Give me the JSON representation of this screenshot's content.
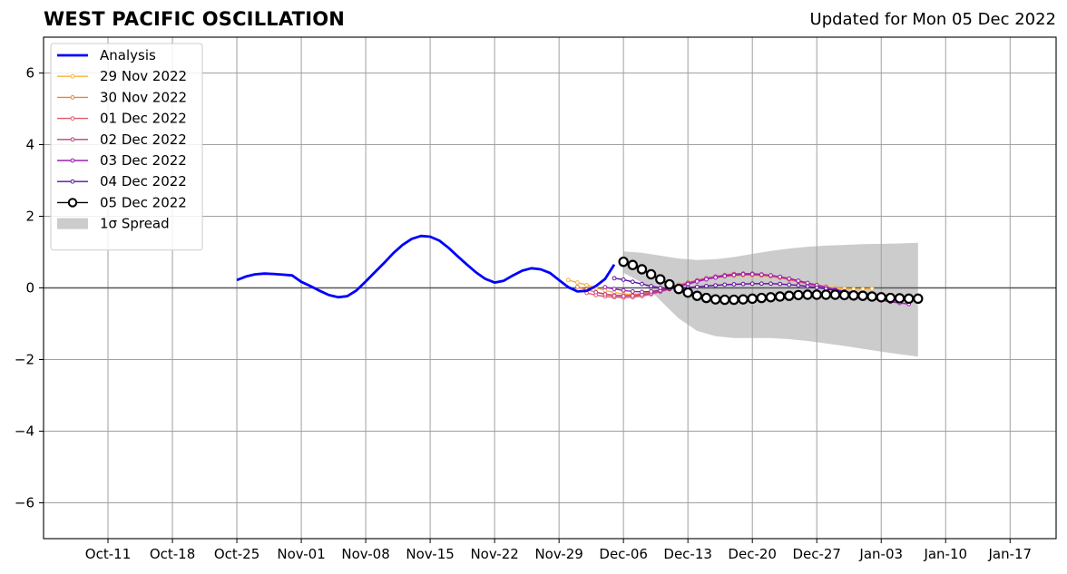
{
  "title": "WEST PACIFIC OSCILLATION",
  "subtitle": "Updated for Mon 05 Dec 2022",
  "chart_data": {
    "type": "line",
    "title": "WEST PACIFIC OSCILLATION",
    "subtitle": "Updated for Mon 05 Dec 2022",
    "xlabel": "",
    "ylabel": "",
    "x_axis": {
      "start": "2022-10-04",
      "end": "2023-01-22"
    },
    "xticks": [
      {
        "date": "2022-10-11",
        "label": "Oct-11"
      },
      {
        "date": "2022-10-18",
        "label": "Oct-18"
      },
      {
        "date": "2022-10-25",
        "label": "Oct-25"
      },
      {
        "date": "2022-11-01",
        "label": "Nov-01"
      },
      {
        "date": "2022-11-08",
        "label": "Nov-08"
      },
      {
        "date": "2022-11-15",
        "label": "Nov-15"
      },
      {
        "date": "2022-11-22",
        "label": "Nov-22"
      },
      {
        "date": "2022-11-29",
        "label": "Nov-29"
      },
      {
        "date": "2022-12-06",
        "label": "Dec-06"
      },
      {
        "date": "2022-12-13",
        "label": "Dec-13"
      },
      {
        "date": "2022-12-20",
        "label": "Dec-20"
      },
      {
        "date": "2022-12-27",
        "label": "Dec-27"
      },
      {
        "date": "2023-01-03",
        "label": "Jan-03"
      },
      {
        "date": "2023-01-10",
        "label": "Jan-10"
      },
      {
        "date": "2023-01-17",
        "label": "Jan-17"
      }
    ],
    "ylim": [
      -7,
      7
    ],
    "yticks": [
      -6,
      -4,
      -2,
      0,
      2,
      4,
      6
    ],
    "ytick_labels": [
      "−6",
      "−4",
      "−2",
      "0",
      "2",
      "4",
      "6"
    ],
    "grid": true,
    "zero_line": true,
    "legend_position": "top-left",
    "series": [
      {
        "name": "Analysis",
        "color": "#0000ff",
        "marker": "none",
        "width": 2.8,
        "x": [
          "2022-10-25",
          "2022-10-26",
          "2022-10-27",
          "2022-10-28",
          "2022-10-29",
          "2022-10-30",
          "2022-10-31",
          "2022-11-01",
          "2022-11-02",
          "2022-11-03",
          "2022-11-04",
          "2022-11-05",
          "2022-11-06",
          "2022-11-07",
          "2022-11-08",
          "2022-11-09",
          "2022-11-10",
          "2022-11-11",
          "2022-11-12",
          "2022-11-13",
          "2022-11-14",
          "2022-11-15",
          "2022-11-16",
          "2022-11-17",
          "2022-11-18",
          "2022-11-19",
          "2022-11-20",
          "2022-11-21",
          "2022-11-22",
          "2022-11-23",
          "2022-11-24",
          "2022-11-25",
          "2022-11-26",
          "2022-11-27",
          "2022-11-28",
          "2022-11-29",
          "2022-11-30",
          "2022-12-01",
          "2022-12-02",
          "2022-12-03",
          "2022-12-04",
          "2022-12-05"
        ],
        "y": [
          0.22,
          0.32,
          0.38,
          0.4,
          0.39,
          0.37,
          0.35,
          0.17,
          0.05,
          -0.08,
          -0.2,
          -0.26,
          -0.23,
          -0.07,
          0.18,
          0.44,
          0.7,
          0.97,
          1.2,
          1.37,
          1.45,
          1.43,
          1.32,
          1.12,
          0.88,
          0.65,
          0.43,
          0.25,
          0.15,
          0.2,
          0.35,
          0.48,
          0.55,
          0.52,
          0.42,
          0.22,
          0.02,
          -0.1,
          -0.08,
          0.05,
          0.25,
          0.65
        ]
      },
      {
        "name": "29 Nov 2022",
        "color": "#f9b13a",
        "marker": "dot",
        "x": [
          "2022-11-30",
          "2022-12-01",
          "2022-12-02",
          "2022-12-03",
          "2022-12-04",
          "2022-12-05",
          "2022-12-06",
          "2022-12-07",
          "2022-12-08",
          "2022-12-09",
          "2022-12-10",
          "2022-12-11",
          "2022-12-12",
          "2022-12-13",
          "2022-12-14",
          "2022-12-15",
          "2022-12-16",
          "2022-12-17",
          "2022-12-18",
          "2022-12-19",
          "2022-12-20",
          "2022-12-21",
          "2022-12-22",
          "2022-12-23",
          "2022-12-24",
          "2022-12-25",
          "2022-12-26",
          "2022-12-27",
          "2022-12-28",
          "2022-12-29",
          "2022-12-30",
          "2022-12-31",
          "2023-01-01",
          "2023-01-02"
        ],
        "y": [
          0.22,
          0.15,
          0.08,
          0.0,
          -0.07,
          -0.13,
          -0.17,
          -0.18,
          -0.16,
          -0.11,
          -0.05,
          0.02,
          0.08,
          0.14,
          0.2,
          0.25,
          0.29,
          0.32,
          0.34,
          0.35,
          0.35,
          0.34,
          0.32,
          0.28,
          0.24,
          0.19,
          0.14,
          0.09,
          0.04,
          0.0,
          -0.02,
          -0.03,
          -0.03,
          -0.02
        ]
      },
      {
        "name": "30 Nov 2022",
        "color": "#ee8140",
        "marker": "dot",
        "x": [
          "2022-12-01",
          "2022-12-02",
          "2022-12-03",
          "2022-12-04",
          "2022-12-05",
          "2022-12-06",
          "2022-12-07",
          "2022-12-08",
          "2022-12-09",
          "2022-12-10",
          "2022-12-11",
          "2022-12-12",
          "2022-12-13",
          "2022-12-14",
          "2022-12-15",
          "2022-12-16",
          "2022-12-17",
          "2022-12-18",
          "2022-12-19",
          "2022-12-20",
          "2022-12-21",
          "2022-12-22",
          "2022-12-23",
          "2022-12-24",
          "2022-12-25",
          "2022-12-26",
          "2022-12-27",
          "2022-12-28",
          "2022-12-29",
          "2022-12-30",
          "2022-12-31",
          "2023-01-01",
          "2023-01-02",
          "2023-01-03"
        ],
        "y": [
          0.03,
          -0.05,
          -0.12,
          -0.17,
          -0.2,
          -0.21,
          -0.2,
          -0.16,
          -0.11,
          -0.05,
          0.02,
          0.09,
          0.15,
          0.21,
          0.26,
          0.3,
          0.33,
          0.35,
          0.36,
          0.36,
          0.35,
          0.32,
          0.28,
          0.23,
          0.17,
          0.11,
          0.05,
          0.0,
          -0.05,
          -0.09,
          -0.12,
          -0.15,
          -0.18,
          -0.22
        ]
      },
      {
        "name": "01 Dec 2022",
        "color": "#dd5a6e",
        "marker": "dot",
        "x": [
          "2022-12-02",
          "2022-12-03",
          "2022-12-04",
          "2022-12-05",
          "2022-12-06",
          "2022-12-07",
          "2022-12-08",
          "2022-12-09",
          "2022-12-10",
          "2022-12-11",
          "2022-12-12",
          "2022-12-13",
          "2022-12-14",
          "2022-12-15",
          "2022-12-16",
          "2022-12-17",
          "2022-12-18",
          "2022-12-19",
          "2022-12-20",
          "2022-12-21",
          "2022-12-22",
          "2022-12-23",
          "2022-12-24",
          "2022-12-25",
          "2022-12-26",
          "2022-12-27",
          "2022-12-28",
          "2022-12-29",
          "2022-12-30",
          "2022-12-31",
          "2023-01-01",
          "2023-01-02",
          "2023-01-03",
          "2023-01-04"
        ],
        "y": [
          -0.14,
          -0.2,
          -0.24,
          -0.26,
          -0.27,
          -0.26,
          -0.23,
          -0.18,
          -0.11,
          -0.04,
          0.04,
          0.11,
          0.18,
          0.24,
          0.29,
          0.33,
          0.36,
          0.38,
          0.38,
          0.37,
          0.34,
          0.3,
          0.24,
          0.18,
          0.12,
          0.05,
          -0.01,
          -0.07,
          -0.12,
          -0.17,
          -0.22,
          -0.27,
          -0.31,
          -0.35
        ]
      },
      {
        "name": "02 Dec 2022",
        "color": "#c23b8a",
        "marker": "dot",
        "x": [
          "2022-12-03",
          "2022-12-04",
          "2022-12-05",
          "2022-12-06",
          "2022-12-07",
          "2022-12-08",
          "2022-12-09",
          "2022-12-10",
          "2022-12-11",
          "2022-12-12",
          "2022-12-13",
          "2022-12-14",
          "2022-12-15",
          "2022-12-16",
          "2022-12-17",
          "2022-12-18",
          "2022-12-19",
          "2022-12-20",
          "2022-12-21",
          "2022-12-22",
          "2022-12-23",
          "2022-12-24",
          "2022-12-25",
          "2022-12-26",
          "2022-12-27",
          "2022-12-28",
          "2022-12-29",
          "2022-12-30",
          "2022-12-31",
          "2023-01-01",
          "2023-01-02",
          "2023-01-03",
          "2023-01-04",
          "2023-01-05"
        ],
        "y": [
          -0.12,
          -0.18,
          -0.22,
          -0.23,
          -0.22,
          -0.19,
          -0.15,
          -0.09,
          -0.02,
          0.06,
          0.14,
          0.21,
          0.27,
          0.32,
          0.36,
          0.39,
          0.4,
          0.4,
          0.38,
          0.35,
          0.31,
          0.26,
          0.2,
          0.13,
          0.07,
          0.0,
          -0.06,
          -0.12,
          -0.18,
          -0.24,
          -0.3,
          -0.35,
          -0.39,
          -0.42
        ]
      },
      {
        "name": "03 Dec 2022",
        "color": "#9a1fb0",
        "marker": "dot",
        "x": [
          "2022-12-04",
          "2022-12-05",
          "2022-12-06",
          "2022-12-07",
          "2022-12-08",
          "2022-12-09",
          "2022-12-10",
          "2022-12-11",
          "2022-12-12",
          "2022-12-13",
          "2022-12-14",
          "2022-12-15",
          "2022-12-16",
          "2022-12-17",
          "2022-12-18",
          "2022-12-19",
          "2022-12-20",
          "2022-12-21",
          "2022-12-22",
          "2022-12-23",
          "2022-12-24",
          "2022-12-25",
          "2022-12-26",
          "2022-12-27",
          "2022-12-28",
          "2022-12-29",
          "2022-12-30",
          "2022-12-31",
          "2023-01-01",
          "2023-01-02",
          "2023-01-03",
          "2023-01-04",
          "2023-01-05",
          "2023-01-06"
        ],
        "y": [
          0.02,
          -0.03,
          -0.07,
          -0.1,
          -0.11,
          -0.1,
          -0.07,
          -0.02,
          0.04,
          0.11,
          0.18,
          0.24,
          0.29,
          0.33,
          0.36,
          0.38,
          0.38,
          0.37,
          0.35,
          0.31,
          0.26,
          0.2,
          0.14,
          0.08,
          0.02,
          -0.04,
          -0.1,
          -0.16,
          -0.22,
          -0.28,
          -0.33,
          -0.38,
          -0.42,
          -0.45
        ]
      },
      {
        "name": "04 Dec 2022",
        "color": "#5b0fa0",
        "marker": "dot",
        "x": [
          "2022-12-05",
          "2022-12-06",
          "2022-12-07",
          "2022-12-08",
          "2022-12-09",
          "2022-12-10",
          "2022-12-11",
          "2022-12-12",
          "2022-12-13",
          "2022-12-14",
          "2022-12-15",
          "2022-12-16",
          "2022-12-17",
          "2022-12-18",
          "2022-12-19",
          "2022-12-20",
          "2022-12-21",
          "2022-12-22",
          "2022-12-23",
          "2022-12-24",
          "2022-12-25",
          "2022-12-26",
          "2022-12-27",
          "2022-12-28",
          "2022-12-29",
          "2022-12-30",
          "2022-12-31",
          "2023-01-01",
          "2023-01-02",
          "2023-01-03",
          "2023-01-04",
          "2023-01-05",
          "2023-01-06",
          "2023-01-07"
        ],
        "y": [
          0.27,
          0.23,
          0.17,
          0.11,
          0.05,
          0.0,
          -0.02,
          -0.01,
          0.01,
          0.03,
          0.05,
          0.07,
          0.09,
          0.1,
          0.11,
          0.12,
          0.12,
          0.12,
          0.11,
          0.09,
          0.07,
          0.04,
          0.01,
          -0.03,
          -0.07,
          -0.11,
          -0.15,
          -0.19,
          -0.23,
          -0.26,
          -0.28,
          -0.3,
          -0.31,
          -0.32
        ]
      },
      {
        "name": "05 Dec 2022",
        "color": "#000000",
        "marker": "circle",
        "x": [
          "2022-12-06",
          "2022-12-07",
          "2022-12-08",
          "2022-12-09",
          "2022-12-10",
          "2022-12-11",
          "2022-12-12",
          "2022-12-13",
          "2022-12-14",
          "2022-12-15",
          "2022-12-16",
          "2022-12-17",
          "2022-12-18",
          "2022-12-19",
          "2022-12-20",
          "2022-12-21",
          "2022-12-22",
          "2022-12-23",
          "2022-12-24",
          "2022-12-25",
          "2022-12-26",
          "2022-12-27",
          "2022-12-28",
          "2022-12-29",
          "2022-12-30",
          "2022-12-31",
          "2023-01-01",
          "2023-01-02",
          "2023-01-03",
          "2023-01-04",
          "2023-01-05",
          "2023-01-06",
          "2023-01-07"
        ],
        "y": [
          0.73,
          0.64,
          0.52,
          0.38,
          0.24,
          0.1,
          -0.03,
          -0.13,
          -0.22,
          -0.28,
          -0.32,
          -0.33,
          -0.33,
          -0.32,
          -0.3,
          -0.28,
          -0.26,
          -0.24,
          -0.22,
          -0.2,
          -0.19,
          -0.19,
          -0.19,
          -0.19,
          -0.2,
          -0.21,
          -0.22,
          -0.24,
          -0.26,
          -0.28,
          -0.29,
          -0.3,
          -0.3
        ]
      }
    ],
    "spread": {
      "name": "1σ Spread",
      "color": "#cccccc",
      "x": [
        "2022-12-06",
        "2022-12-08",
        "2022-12-10",
        "2022-12-12",
        "2022-12-14",
        "2022-12-16",
        "2022-12-18",
        "2022-12-20",
        "2022-12-22",
        "2022-12-24",
        "2022-12-26",
        "2022-12-28",
        "2022-12-30",
        "2023-01-01",
        "2023-01-03",
        "2023-01-05",
        "2023-01-07"
      ],
      "upper": [
        1.02,
        0.98,
        0.9,
        0.82,
        0.78,
        0.8,
        0.86,
        0.95,
        1.03,
        1.1,
        1.15,
        1.18,
        1.2,
        1.22,
        1.23,
        1.24,
        1.26
      ],
      "lower": [
        0.42,
        0.15,
        -0.35,
        -0.85,
        -1.2,
        -1.35,
        -1.4,
        -1.4,
        -1.4,
        -1.43,
        -1.48,
        -1.55,
        -1.62,
        -1.7,
        -1.78,
        -1.85,
        -1.92
      ]
    }
  }
}
